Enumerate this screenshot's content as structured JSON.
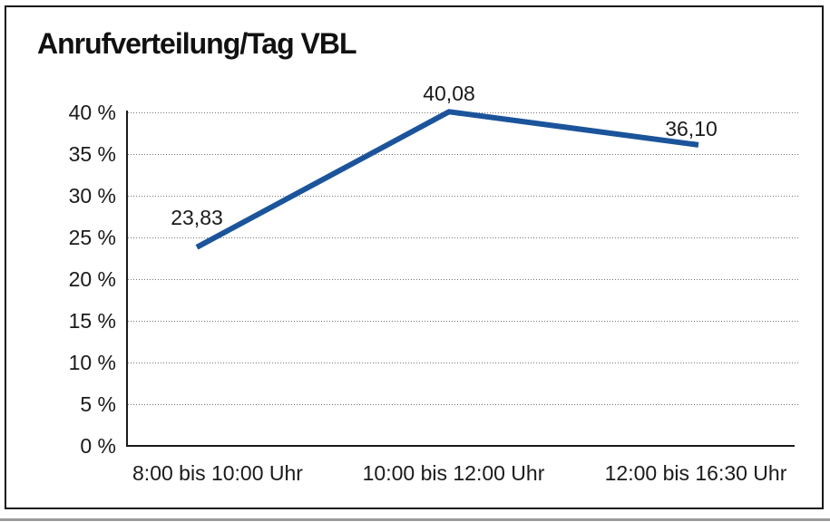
{
  "chart_data": {
    "type": "line",
    "title": "Anrufverteilung/Tag VBL",
    "categories": [
      "8:00 bis 10:00 Uhr",
      "10:00 bis 12:00 Uhr",
      "12:00 bis 16:30 Uhr"
    ],
    "series": [
      {
        "name": "",
        "values": [
          23.83,
          40.08,
          36.1
        ]
      }
    ],
    "value_labels": [
      "23,83",
      "40,08",
      "36,10"
    ],
    "xlabel": "",
    "ylabel": "",
    "ylim": [
      0,
      40
    ],
    "ytick_step": 5,
    "ytick_labels": [
      "0 %",
      "5 %",
      "10 %",
      "15 %",
      "20 %",
      "25 %",
      "30 %",
      "35 %",
      "40 %"
    ],
    "grid": "horizontal-dotted",
    "legend": "none",
    "line_color": "#1b549b",
    "grid_color": "#777777",
    "axis_color": "#1a1a1a",
    "title_color": "#111111",
    "background_color": "#ffffff",
    "frame_border_color": "#161616"
  }
}
